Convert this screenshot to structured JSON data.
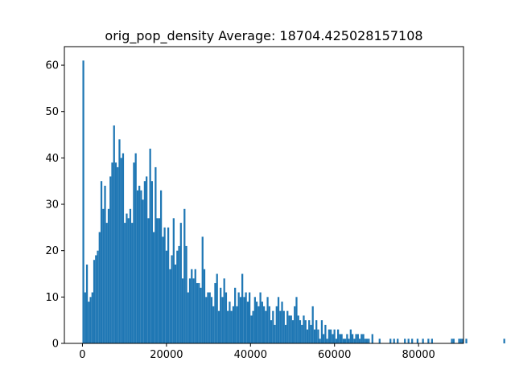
{
  "chart_data": {
    "type": "bar",
    "title": "orig_pop_density  Average: 18704.425028157108",
    "xlabel": "",
    "ylabel": "",
    "xlim": [
      -4300,
      90700
    ],
    "ylim": [
      0,
      64
    ],
    "x_ticks": [
      0,
      20000,
      40000,
      60000,
      80000
    ],
    "x_tick_labels": [
      "0",
      "20000",
      "40000",
      "60000",
      "80000"
    ],
    "y_ticks": [
      0,
      10,
      20,
      30,
      40,
      50,
      60
    ],
    "y_tick_labels": [
      "0",
      "10",
      "20",
      "30",
      "40",
      "50",
      "60"
    ],
    "grid": false,
    "bar_color": "#1f77b4",
    "bin_start": 0,
    "bin_width": 430,
    "values": [
      61,
      11,
      17,
      9,
      10,
      11,
      18,
      19,
      20,
      24,
      35,
      29,
      34,
      26,
      29,
      36,
      39,
      47,
      39,
      38,
      44,
      40,
      41,
      26,
      28,
      27,
      29,
      26,
      39,
      41,
      33,
      34,
      33,
      31,
      35,
      36,
      27,
      42,
      35,
      24,
      38,
      27,
      27,
      33,
      23,
      25,
      20,
      25,
      16,
      19,
      27,
      17,
      20,
      21,
      26,
      14,
      29,
      21,
      11,
      14,
      16,
      14,
      16,
      13,
      13,
      12,
      23,
      16,
      10,
      11,
      11,
      10,
      8,
      13,
      15,
      7,
      12,
      10,
      14,
      11,
      7,
      9,
      7,
      8,
      12,
      8,
      11,
      10,
      15,
      10,
      11,
      9,
      11,
      6,
      7,
      10,
      9,
      8,
      11,
      9,
      8,
      7,
      10,
      8,
      5,
      7,
      4,
      8,
      10,
      7,
      9,
      7,
      4,
      7,
      6,
      6,
      5,
      8,
      10,
      6,
      5,
      4,
      6,
      5,
      3,
      5,
      4,
      8,
      3,
      5,
      3,
      1,
      5,
      2,
      4,
      1,
      3,
      3,
      2,
      3,
      1,
      3,
      2,
      2,
      1,
      1,
      2,
      1,
      3,
      2,
      1,
      2,
      2,
      1,
      2,
      2,
      1,
      1,
      1,
      0,
      2,
      0,
      0,
      0,
      1,
      0,
      0,
      0,
      0,
      0,
      1,
      0,
      1,
      0,
      1,
      0,
      0,
      0,
      1,
      0,
      1,
      0,
      1,
      0,
      0,
      1,
      0,
      0,
      1,
      0,
      0,
      1,
      0,
      1,
      0,
      0,
      0,
      0,
      0,
      0,
      0,
      0,
      0,
      0,
      1,
      1,
      0,
      0,
      1,
      1,
      1,
      0,
      1,
      0,
      0,
      0,
      0,
      0,
      0,
      0,
      0,
      0,
      0,
      0,
      0,
      0,
      0,
      0,
      0,
      0,
      0,
      0,
      0,
      1,
      0,
      0,
      0,
      0,
      0,
      0,
      0,
      0,
      0,
      0,
      0,
      0,
      0,
      0,
      0,
      0,
      1
    ]
  }
}
